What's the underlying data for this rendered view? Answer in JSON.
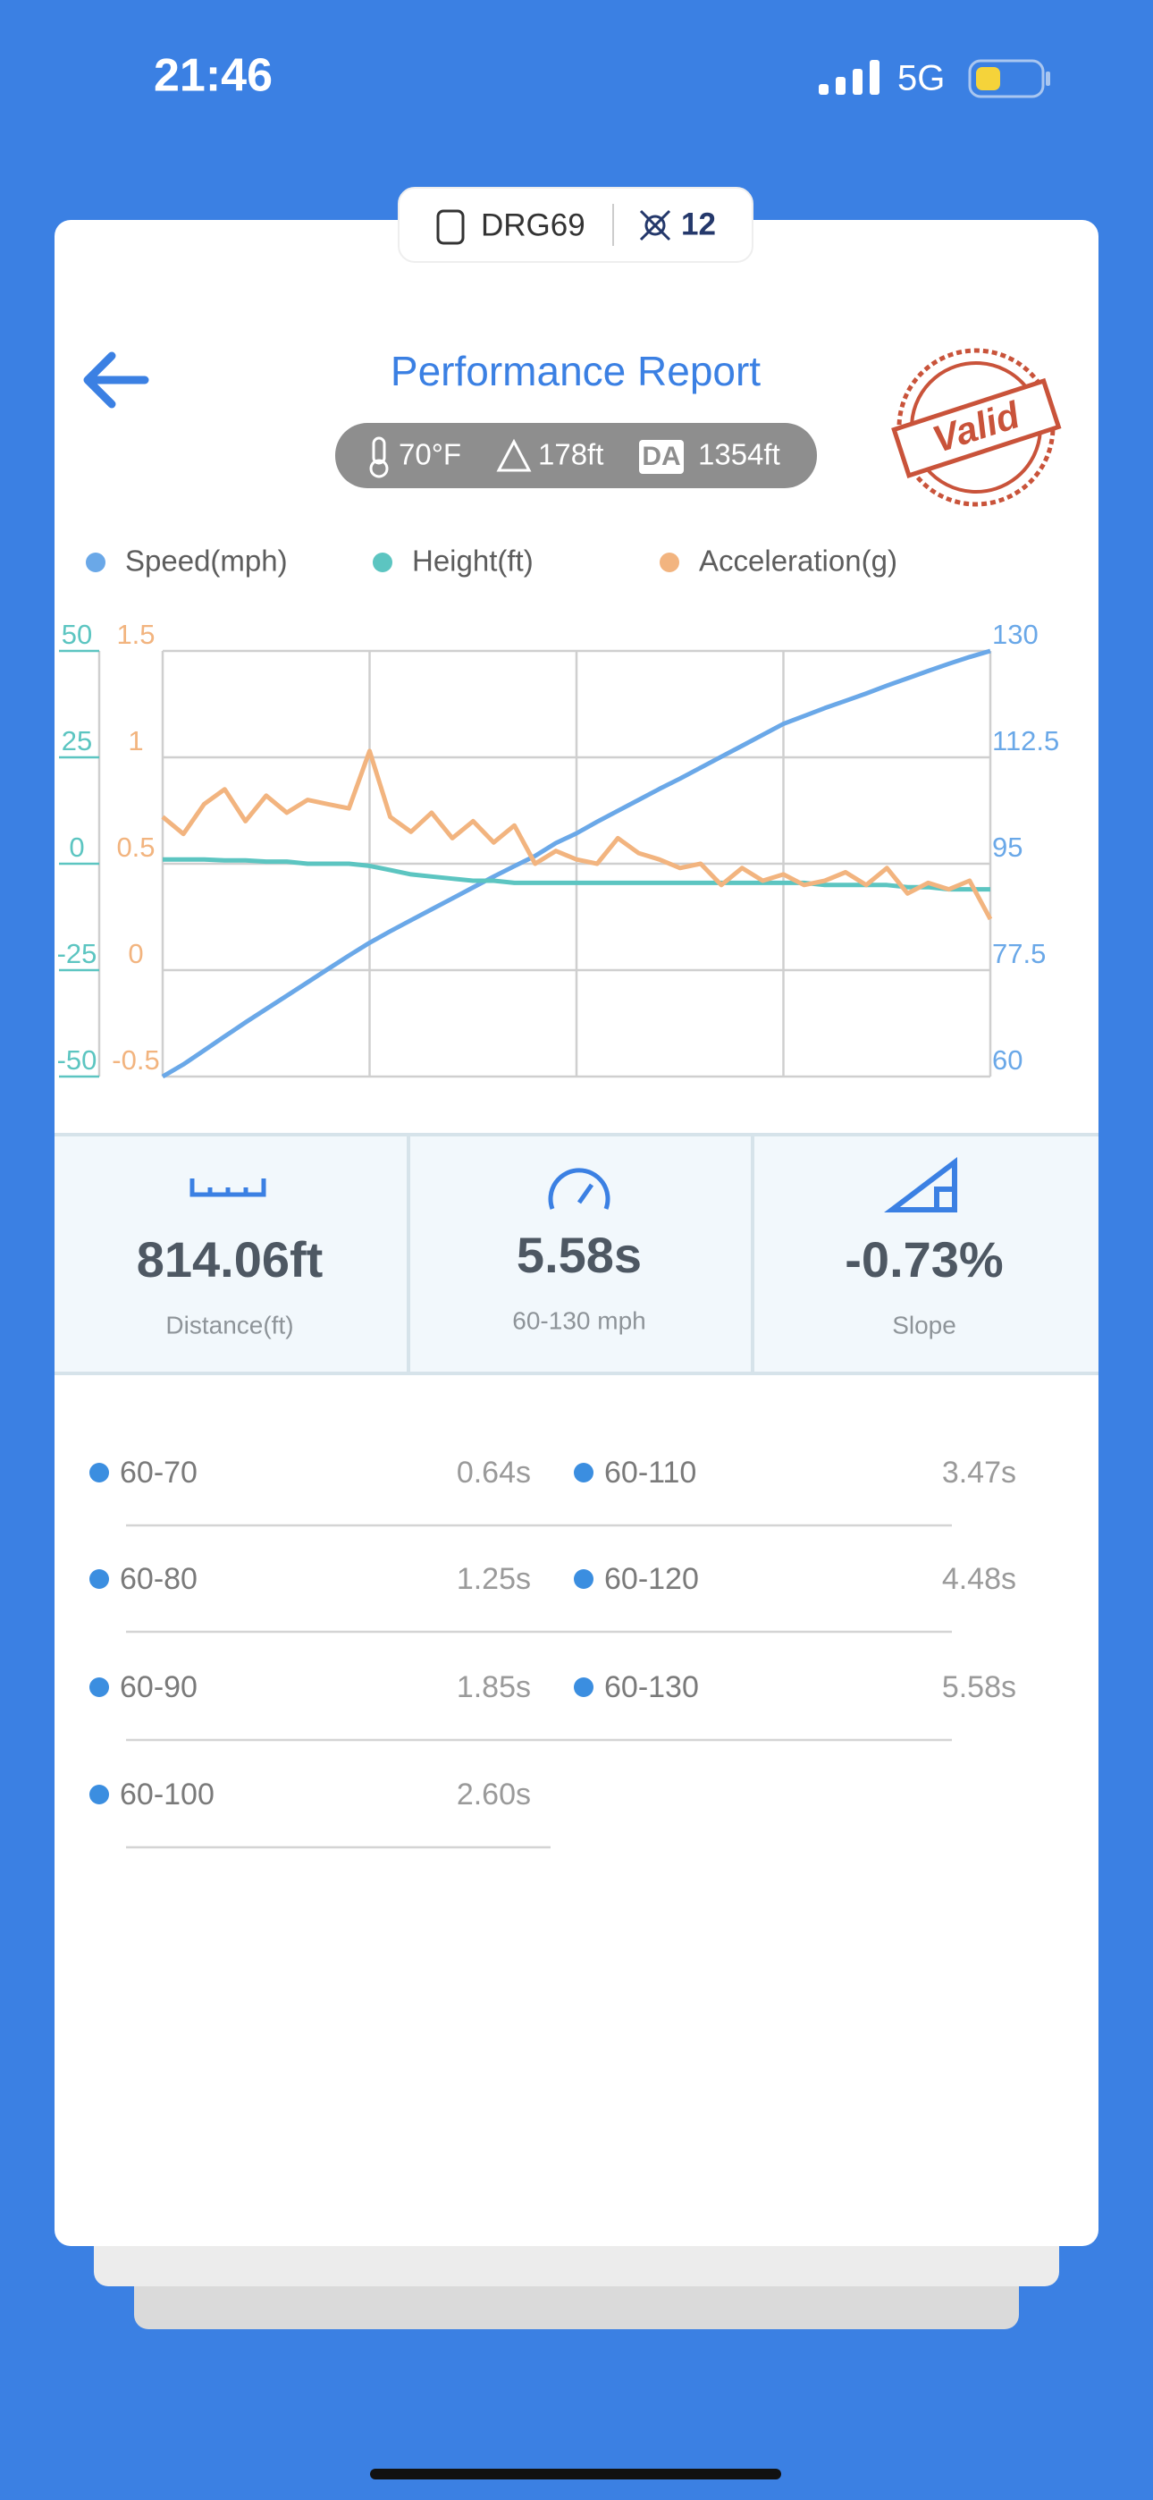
{
  "status_bar": {
    "time": "21:46",
    "network": "5G"
  },
  "device": {
    "name": "DRG69",
    "satellites": 12
  },
  "header": {
    "title": "Performance Report",
    "stamp": "Valid"
  },
  "conditions": {
    "temperature": "70°F",
    "altitude": "178ft",
    "da_label": "DA",
    "density_altitude": "1354ft"
  },
  "chart_data": {
    "type": "line",
    "series": [
      {
        "name": "Speed(mph)",
        "color": "#6aa8e8",
        "axis": "y3",
        "values": [
          60,
          62,
          64.3,
          66.6,
          68.9,
          71.1,
          73.3,
          75.5,
          77.7,
          79.9,
          82,
          83.9,
          85.7,
          87.5,
          89.3,
          91.1,
          92.9,
          94.6,
          96.3,
          98.4,
          100,
          101.9,
          103.7,
          105.5,
          107.3,
          109,
          110.8,
          112.6,
          114.4,
          116.2,
          118,
          119.3,
          120.6,
          121.8,
          123,
          124.3,
          125.5,
          126.7,
          127.9,
          129,
          130
        ]
      },
      {
        "name": "Height(ft)",
        "color": "#5cc5c1",
        "axis": "y",
        "values": [
          1,
          1,
          1,
          0.8,
          0.8,
          0.5,
          0.5,
          0,
          0,
          0,
          -0.5,
          -1.5,
          -2.5,
          -3,
          -3.5,
          -4,
          -4,
          -4.5,
          -4.5,
          -4.5,
          -4.5,
          -4.5,
          -4.5,
          -4.5,
          -4.5,
          -4.5,
          -4.5,
          -4.5,
          -4.5,
          -4.5,
          -4.5,
          -4.5,
          -5,
          -5,
          -5,
          -5,
          -5.5,
          -5.5,
          -6,
          -6,
          -6
        ]
      },
      {
        "name": "Acceleration(g)",
        "color": "#f2b47f",
        "axis": "y2",
        "values": [
          0.72,
          0.64,
          0.78,
          0.85,
          0.7,
          0.82,
          0.74,
          0.8,
          0.78,
          0.76,
          1.03,
          0.72,
          0.65,
          0.74,
          0.62,
          0.7,
          0.6,
          0.68,
          0.5,
          0.56,
          0.52,
          0.5,
          0.62,
          0.55,
          0.52,
          0.48,
          0.5,
          0.4,
          0.48,
          0.42,
          0.45,
          0.4,
          0.42,
          0.46,
          0.4,
          0.48,
          0.36,
          0.41,
          0.38,
          0.42,
          0.24
        ]
      }
    ],
    "ylim": [
      -50,
      50
    ],
    "yticks": [
      50,
      25,
      0,
      -25,
      -50
    ],
    "y2lim": [
      -0.5,
      1.5
    ],
    "y2ticks": [
      1.5,
      1,
      0.5,
      0,
      -0.5
    ],
    "y3lim": [
      60,
      130
    ],
    "y3ticks": [
      130,
      112.5,
      95,
      77.5,
      60
    ],
    "grid": true
  },
  "stats": [
    {
      "value": "814.06ft",
      "label": "Distance(ft)"
    },
    {
      "value": "5.58s",
      "label": "60-130 mph"
    },
    {
      "value": "-0.73%",
      "label": "Slope"
    }
  ],
  "splits": [
    {
      "range": "60-70",
      "time": "0.64s"
    },
    {
      "range": "60-110",
      "time": "3.47s"
    },
    {
      "range": "60-80",
      "time": "1.25s"
    },
    {
      "range": "60-120",
      "time": "4.48s"
    },
    {
      "range": "60-90",
      "time": "1.85s"
    },
    {
      "range": "60-130",
      "time": "5.58s"
    },
    {
      "range": "60-100",
      "time": "2.60s"
    }
  ]
}
